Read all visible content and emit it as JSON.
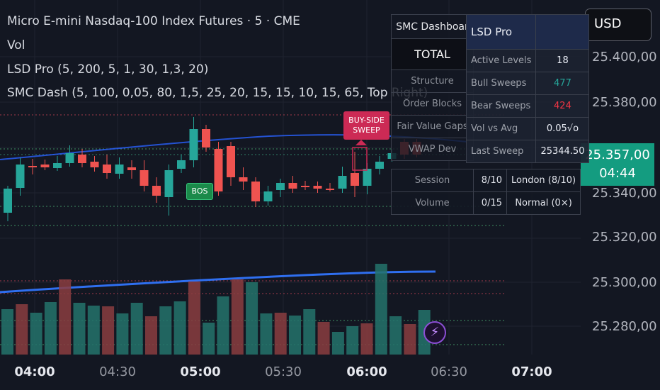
{
  "legend": {
    "title": "Micro E-mini Nasdaq-100 Index Futures · 5 · CME",
    "vol": "Vol",
    "lsd": "LSD Pro (5, 200, 5, 1, 30, 1,3, 20)",
    "smc": "SMC Dash (5, 100, 0,05, 80, 1,5, 25, 20, 15, 15, 10, 15, 65, Top Right)"
  },
  "currency": "USD",
  "price_axis": {
    "labels": [
      "25.400,00",
      "25.380,00",
      "25.340,00",
      "25.320,00",
      "25.300,00",
      "25.280,00"
    ],
    "current_price": "25.357,00",
    "countdown": "04:44"
  },
  "time_axis": [
    {
      "label": "04:00",
      "major": true
    },
    {
      "label": "04:30",
      "major": false
    },
    {
      "label": "05:00",
      "major": true
    },
    {
      "label": "05:30",
      "major": false
    },
    {
      "label": "06:00",
      "major": true
    },
    {
      "label": "06:30",
      "major": false
    },
    {
      "label": "07:00",
      "major": true
    }
  ],
  "markers": {
    "bos": "BOS",
    "sweep_line1": "BUY-SIDE",
    "sweep_line2": "SWEEP"
  },
  "smc_dashboard": {
    "title": "SMC Dashboar",
    "total": "TOTAL",
    "rows": [
      "Structure",
      "Order Blocks",
      "Fair Value Gaps",
      "VWAP Dev"
    ],
    "session": {
      "label": "Session",
      "score": "8/10",
      "value": "London (8/10)"
    },
    "volume": {
      "label": "Volume",
      "score": "0/15",
      "value": "Normal (0×)"
    }
  },
  "lsd_pro": {
    "title": "LSD Pro",
    "rows": [
      {
        "label": "Active Levels",
        "value": "18"
      },
      {
        "label": "Bull Sweeps",
        "value": "477",
        "color": "#26a69a"
      },
      {
        "label": "Bear Sweeps",
        "value": "424",
        "color": "#f23645"
      },
      {
        "label": "Vol vs Avg",
        "value": "0.05√o"
      },
      {
        "label": "Last Sweep",
        "value": "25344.50"
      }
    ]
  },
  "colors": {
    "background": "#131722",
    "bull": "#26a69a",
    "bear": "#ef5350",
    "accent_price": "#149c80",
    "ma_line": "#2962ff",
    "sweep_tag": "#cc2a55",
    "bos_tag": "#1b8a4a"
  },
  "icons": [
    "lightning-icon"
  ]
}
